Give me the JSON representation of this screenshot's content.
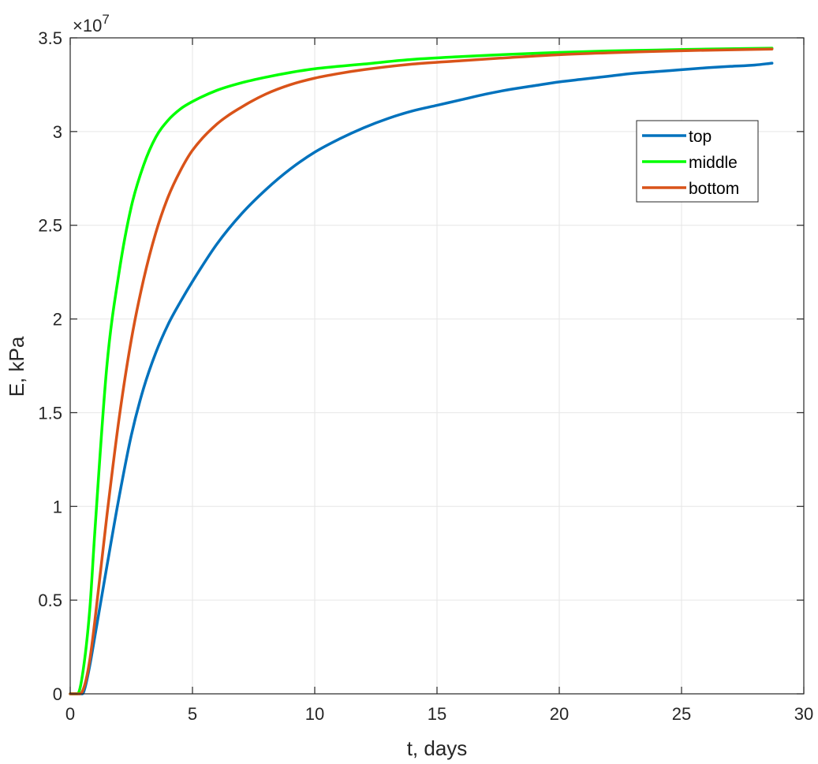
{
  "chart_data": {
    "type": "line",
    "title": "",
    "xlabel": "t, days",
    "ylabel": "E, kPa",
    "exponent_label": "×10",
    "exponent_power": "7",
    "xlim": [
      0,
      30
    ],
    "ylim": [
      0,
      35000000
    ],
    "xticks": [
      0,
      5,
      10,
      15,
      20,
      25,
      30
    ],
    "xtick_labels": [
      "0",
      "5",
      "10",
      "15",
      "20",
      "25",
      "30"
    ],
    "yticks": [
      0,
      5000000,
      10000000,
      15000000,
      20000000,
      25000000,
      30000000,
      35000000
    ],
    "ytick_labels": [
      "0",
      "0.5",
      "1",
      "1.5",
      "2",
      "2.5",
      "3",
      "3.5"
    ],
    "grid": true,
    "legend_position": "top-right",
    "colors": {
      "top": "#0072BD",
      "middle": "#00FF00",
      "bottom": "#D95319",
      "grid": "#E6E6E6",
      "axis": "#262626"
    },
    "series": [
      {
        "name": "top",
        "color": "#0072BD",
        "x": [
          0,
          0.4,
          0.5,
          0.6,
          0.8,
          1.0,
          1.5,
          2.0,
          2.5,
          3.0,
          3.5,
          4.0,
          4.5,
          5.0,
          6.0,
          7.0,
          8.0,
          9.0,
          10.0,
          11.0,
          12.0,
          13.0,
          14.0,
          15.0,
          16.0,
          17.0,
          18.0,
          19.0,
          20.0,
          21.0,
          22.0,
          23.0,
          24.0,
          25.0,
          26.0,
          27.0,
          28.0,
          28.7
        ],
        "y": [
          0,
          0,
          0,
          300000,
          1500000,
          3000000,
          6800000,
          10500000,
          13800000,
          16300000,
          18200000,
          19700000,
          20900000,
          22000000,
          24000000,
          25600000,
          26900000,
          28000000,
          28900000,
          29600000,
          30200000,
          30700000,
          31100000,
          31400000,
          31700000,
          32000000,
          32250000,
          32450000,
          32650000,
          32800000,
          32950000,
          33100000,
          33200000,
          33300000,
          33400000,
          33480000,
          33550000,
          33650000
        ]
      },
      {
        "name": "middle",
        "color": "#00FF00",
        "x": [
          0,
          0.3,
          0.5,
          0.8,
          1.0,
          1.5,
          2.0,
          2.5,
          3.0,
          3.5,
          4.0,
          4.5,
          5.0,
          6.0,
          7.0,
          8.0,
          9.0,
          10.0,
          12.0,
          14.0,
          16.0,
          18.0,
          20.0,
          22.0,
          24.0,
          26.0,
          28.7
        ],
        "y": [
          0,
          0,
          1000000,
          4500000,
          8500000,
          17500000,
          22500000,
          26000000,
          28200000,
          29700000,
          30600000,
          31200000,
          31600000,
          32200000,
          32600000,
          32900000,
          33150000,
          33350000,
          33600000,
          33850000,
          34000000,
          34120000,
          34220000,
          34300000,
          34350000,
          34400000,
          34450000
        ]
      },
      {
        "name": "bottom",
        "color": "#D95319",
        "x": [
          0,
          0.4,
          0.6,
          0.8,
          1.0,
          1.5,
          2.0,
          2.5,
          3.0,
          3.5,
          4.0,
          4.5,
          5.0,
          6.0,
          7.0,
          8.0,
          9.0,
          10.0,
          11.0,
          12.0,
          14.0,
          16.0,
          18.0,
          20.0,
          22.0,
          24.0,
          26.0,
          28.7
        ],
        "y": [
          0,
          0,
          500000,
          1800000,
          3800000,
          9500000,
          14700000,
          18900000,
          22100000,
          24600000,
          26500000,
          27900000,
          29000000,
          30400000,
          31300000,
          32000000,
          32500000,
          32850000,
          33100000,
          33300000,
          33600000,
          33780000,
          33950000,
          34100000,
          34200000,
          34280000,
          34340000,
          34400000
        ]
      }
    ]
  }
}
